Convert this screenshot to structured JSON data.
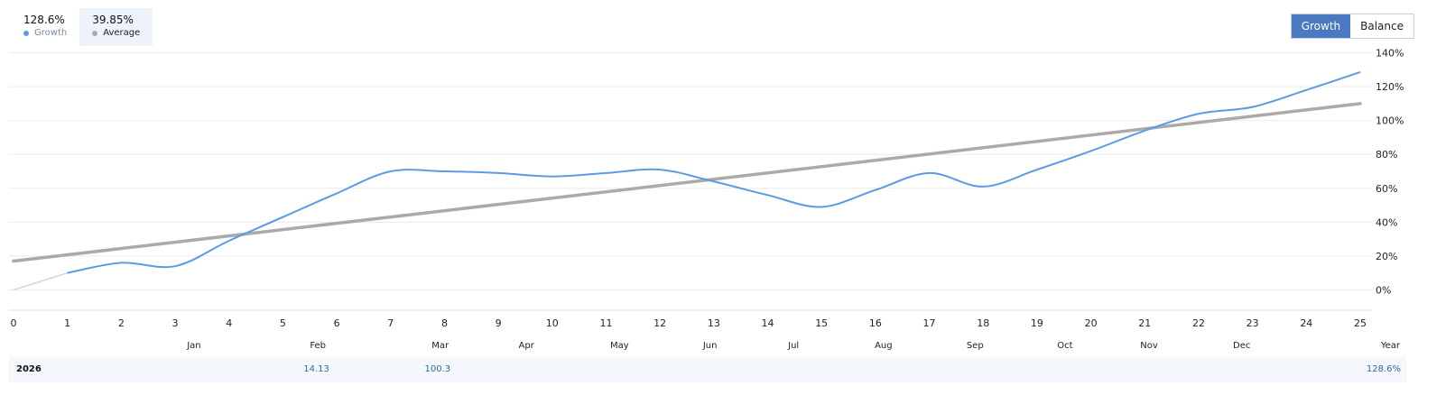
{
  "legend": {
    "growth": {
      "value": "128.6%",
      "label": "Growth",
      "color": "#5b9ae6"
    },
    "average": {
      "value": "39.85%",
      "label": "Average",
      "color": "#aaaaaa"
    }
  },
  "toggle": {
    "growth_label": "Growth",
    "balance_label": "Balance",
    "active": "Growth"
  },
  "chart_data": {
    "type": "line",
    "x_ticks": [
      "0",
      "1",
      "2",
      "3",
      "4",
      "5",
      "6",
      "7",
      "8",
      "9",
      "10",
      "11",
      "12",
      "13",
      "14",
      "15",
      "16",
      "17",
      "18",
      "19",
      "20",
      "21",
      "22",
      "23",
      "24",
      "25"
    ],
    "y_ticks": [
      "0%",
      "20%",
      "40%",
      "60%",
      "80%",
      "100%",
      "120%",
      "140%"
    ],
    "ylim": [
      -12,
      152
    ],
    "xlim": [
      0,
      25
    ],
    "months": [
      {
        "label": "Jan",
        "x": 3.35
      },
      {
        "label": "Feb",
        "x": 5.65
      },
      {
        "label": "Mar",
        "x": 7.92
      },
      {
        "label": "Apr",
        "x": 9.52
      },
      {
        "label": "May",
        "x": 11.25
      },
      {
        "label": "Jun",
        "x": 12.93
      },
      {
        "label": "Jul",
        "x": 14.48
      },
      {
        "label": "Aug",
        "x": 16.15
      },
      {
        "label": "Sep",
        "x": 17.85
      },
      {
        "label": "Oct",
        "x": 19.52
      },
      {
        "label": "Nov",
        "x": 21.08
      },
      {
        "label": "Dec",
        "x": 22.8
      }
    ],
    "year_label": "Year",
    "series": [
      {
        "name": "Growth",
        "color": "#5b9ae6",
        "x": [
          1,
          2,
          3,
          4,
          5,
          6,
          7,
          8,
          9,
          10,
          11,
          12,
          13,
          14,
          15,
          16,
          17,
          18,
          19,
          20,
          21,
          22,
          23,
          24,
          25
        ],
        "values": [
          10,
          16,
          14,
          29,
          43,
          57,
          70,
          70,
          69,
          67,
          69,
          71,
          64,
          56,
          49,
          59,
          69,
          61,
          71,
          82,
          94,
          104,
          108,
          118,
          128.6
        ]
      },
      {
        "name": "Average",
        "color": "#aaaaaa",
        "x": [
          0,
          25
        ],
        "values": [
          17,
          110
        ]
      }
    ],
    "start_segment": {
      "x": [
        0,
        1
      ],
      "values": [
        0,
        10
      ],
      "color": "#c8d6ea"
    }
  },
  "footer": {
    "year": "2026",
    "values": [
      {
        "label": "14.13",
        "x": 5.55
      },
      {
        "label": "100.3",
        "x": 7.8
      },
      {
        "label": "128.6%",
        "x": 25.3
      }
    ]
  }
}
